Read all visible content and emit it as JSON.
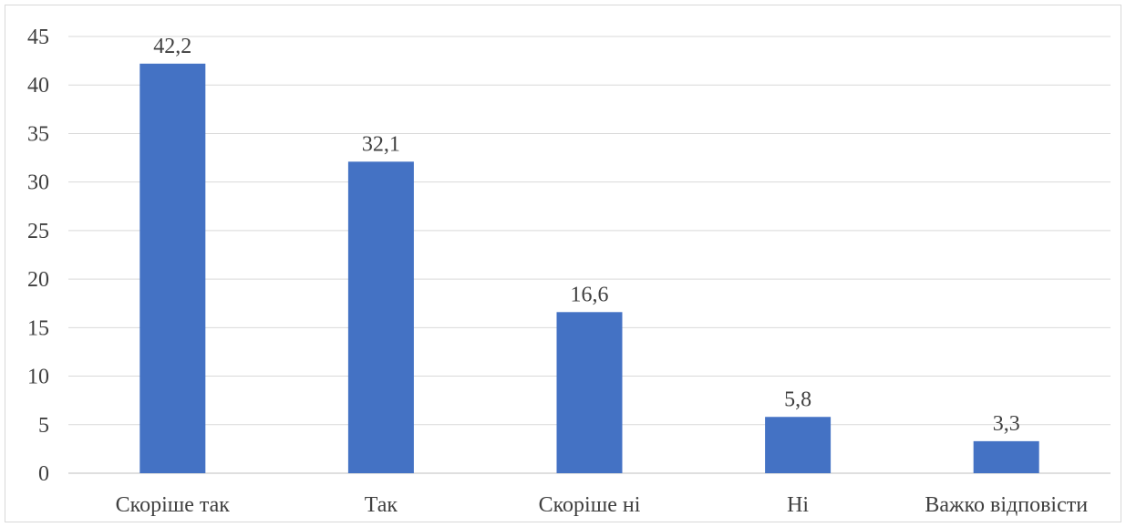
{
  "chart_data": {
    "type": "bar",
    "categories": [
      "Скоріше так",
      "Так",
      "Скоріше ні",
      "Ні",
      "Важко відповісти"
    ],
    "values": [
      42.2,
      32.1,
      16.6,
      5.8,
      3.3
    ],
    "data_labels": [
      "42,2",
      "32,1",
      "16,6",
      "5,8",
      "3,3"
    ],
    "y_ticks": [
      0,
      5,
      10,
      15,
      20,
      25,
      30,
      35,
      40,
      45
    ],
    "ylim": [
      0,
      45
    ],
    "grid": true,
    "legend": "none",
    "bar_color": "#4472c4"
  }
}
